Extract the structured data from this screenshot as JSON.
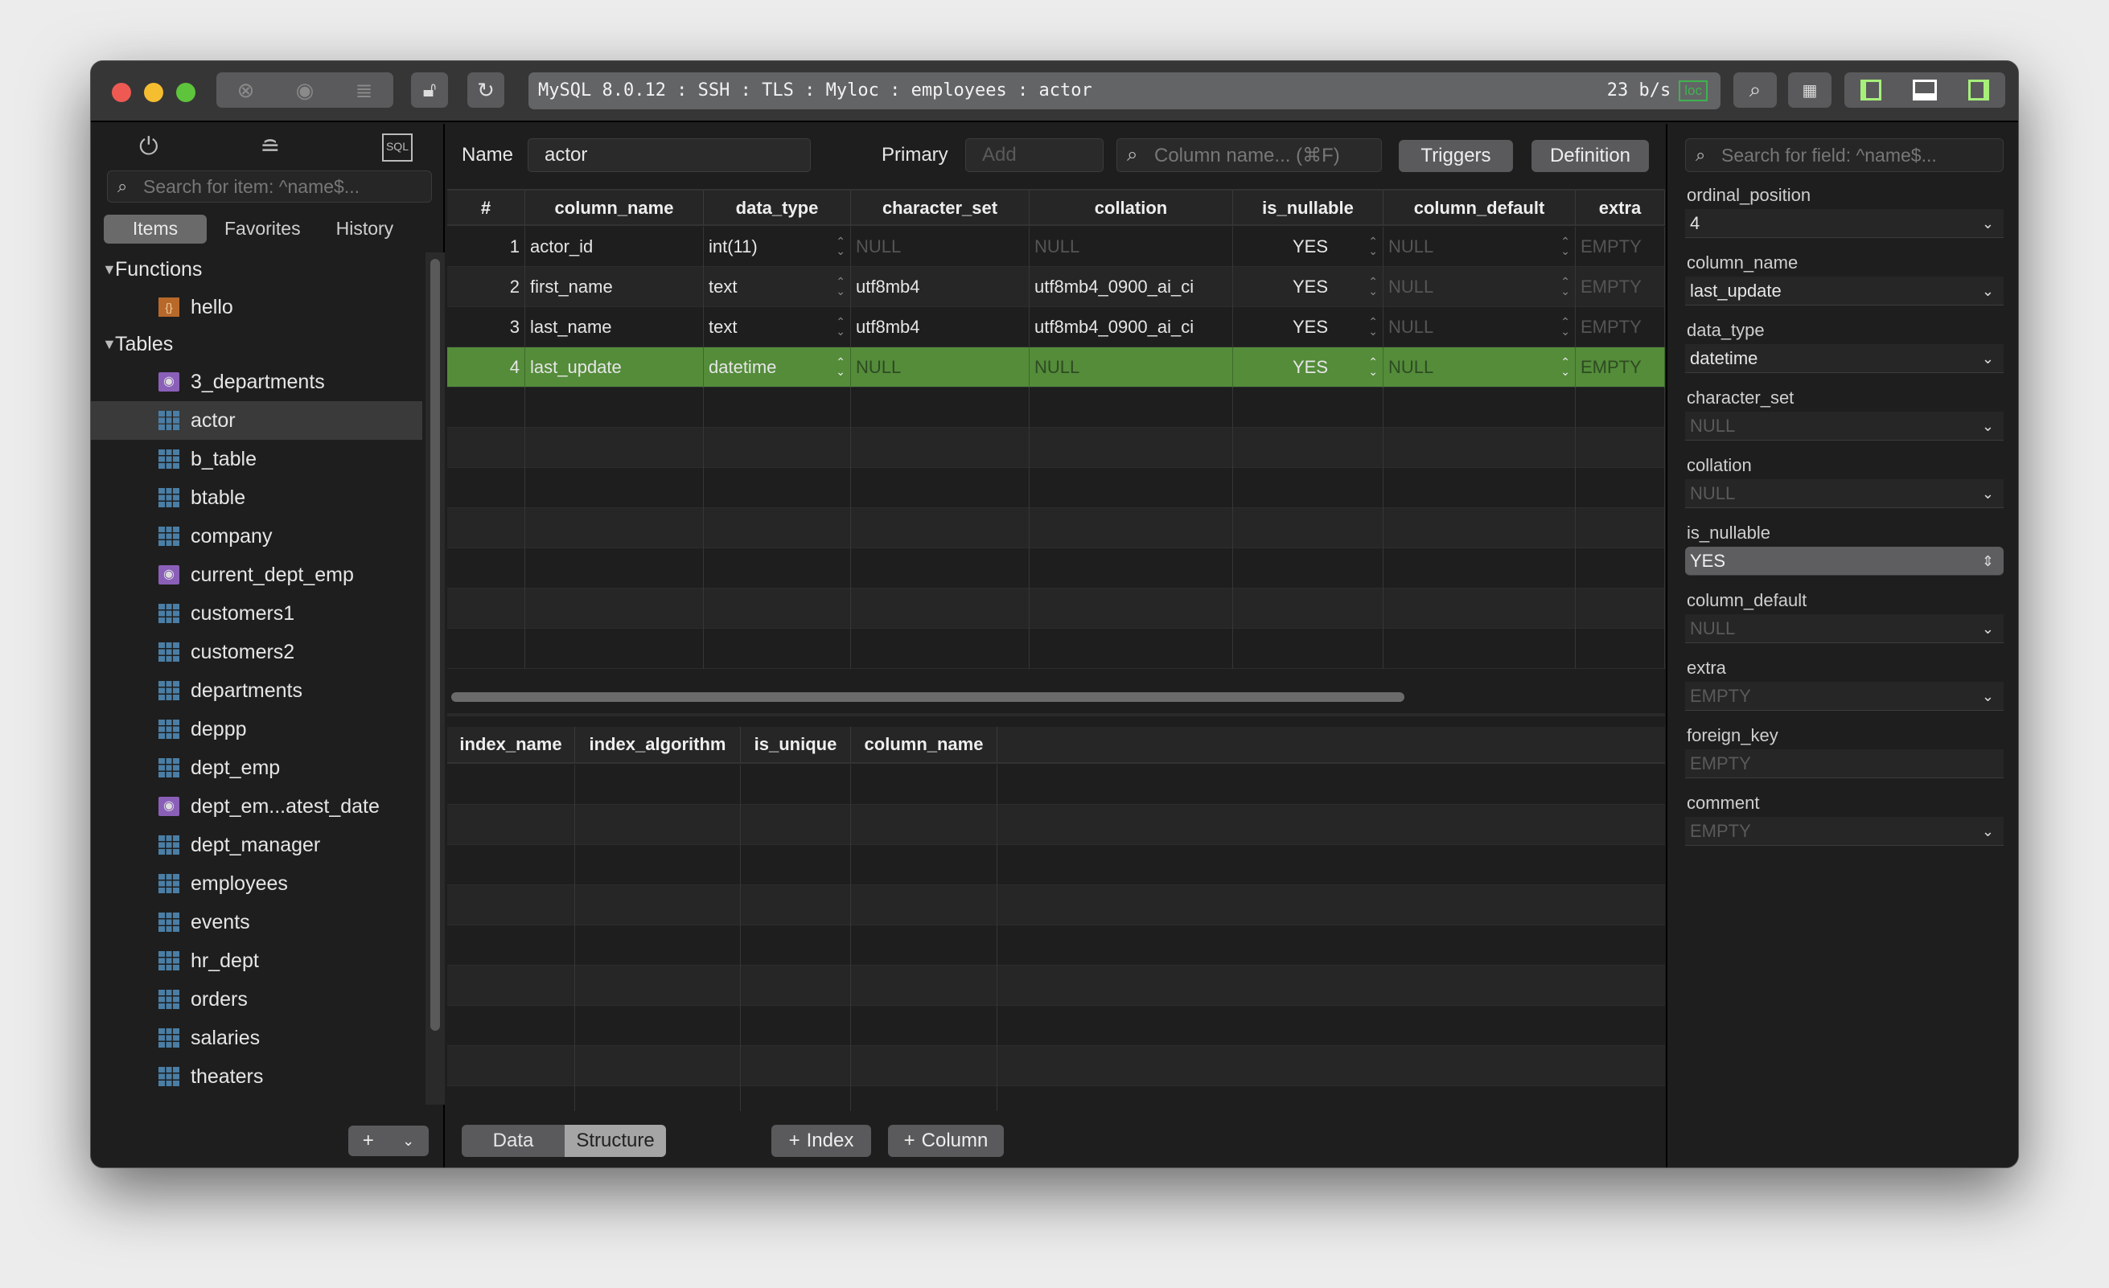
{
  "window": {
    "address": "MySQL 8.0.12 : SSH : TLS : Myloc : employees : actor",
    "rate": "23 b/s",
    "loc_badge": "loc",
    "colors": {
      "close": "#ee5a52",
      "minimize": "#f5bd30",
      "zoom": "#5ec43c",
      "accent_green": "#548c3a"
    }
  },
  "sidebar": {
    "search_placeholder": "Search for item: ^name$...",
    "tabs": [
      "Items",
      "Favorites",
      "History"
    ],
    "active_tab": "Items",
    "groups": {
      "functions": "Functions",
      "tables": "Tables"
    },
    "functions": [
      {
        "name": "hello",
        "icon": "function-icon"
      }
    ],
    "tables": [
      {
        "name": "3_departments",
        "icon": "view-icon"
      },
      {
        "name": "actor",
        "icon": "table-icon",
        "selected": true
      },
      {
        "name": "b_table",
        "icon": "table-icon"
      },
      {
        "name": "btable",
        "icon": "table-icon"
      },
      {
        "name": "company",
        "icon": "table-icon"
      },
      {
        "name": "current_dept_emp",
        "icon": "view-icon"
      },
      {
        "name": "customers1",
        "icon": "table-icon"
      },
      {
        "name": "customers2",
        "icon": "table-icon"
      },
      {
        "name": "departments",
        "icon": "table-icon"
      },
      {
        "name": "deppp",
        "icon": "table-icon"
      },
      {
        "name": "dept_emp",
        "icon": "table-icon"
      },
      {
        "name": "dept_em...atest_date",
        "icon": "view-icon"
      },
      {
        "name": "dept_manager",
        "icon": "table-icon"
      },
      {
        "name": "employees",
        "icon": "table-icon"
      },
      {
        "name": "events",
        "icon": "table-icon"
      },
      {
        "name": "hr_dept",
        "icon": "table-icon"
      },
      {
        "name": "orders",
        "icon": "table-icon"
      },
      {
        "name": "salaries",
        "icon": "table-icon"
      },
      {
        "name": "theaters",
        "icon": "table-icon"
      }
    ]
  },
  "toolbar": {
    "name_label": "Name",
    "name_value": "actor",
    "primary_label": "Primary",
    "primary_placeholder": "Add",
    "column_search_placeholder": "Column name... (⌘F)",
    "triggers": "Triggers",
    "definition": "Definition"
  },
  "columns_table": {
    "headers": [
      "#",
      "column_name",
      "data_type",
      "character_set",
      "collation",
      "is_nullable",
      "column_default",
      "extra"
    ],
    "rows": [
      [
        "1",
        "actor_id",
        "int(11)",
        "NULL",
        "NULL",
        "YES",
        "NULL",
        "EMPTY"
      ],
      [
        "2",
        "first_name",
        "text",
        "utf8mb4",
        "utf8mb4_0900_ai_ci",
        "YES",
        "NULL",
        "EMPTY"
      ],
      [
        "3",
        "last_name",
        "text",
        "utf8mb4",
        "utf8mb4_0900_ai_ci",
        "YES",
        "NULL",
        "EMPTY"
      ],
      [
        "4",
        "last_update",
        "datetime",
        "NULL",
        "NULL",
        "YES",
        "NULL",
        "EMPTY"
      ]
    ],
    "selected_row": 3
  },
  "index_table": {
    "headers": [
      "index_name",
      "index_algorithm",
      "is_unique",
      "column_name"
    ]
  },
  "bottom": {
    "data": "Data",
    "structure": "Structure",
    "index": "Index",
    "column": "Column",
    "active": "Structure"
  },
  "detail": {
    "search_placeholder": "Search for field: ^name$...",
    "fields": [
      {
        "label": "ordinal_position",
        "value": "4",
        "kind": "select"
      },
      {
        "label": "column_name",
        "value": "last_update",
        "kind": "select"
      },
      {
        "label": "data_type",
        "value": "datetime",
        "kind": "select"
      },
      {
        "label": "character_set",
        "value": "NULL",
        "kind": "select-muted"
      },
      {
        "label": "collation",
        "value": "NULL",
        "kind": "select-muted"
      },
      {
        "label": "is_nullable",
        "value": "YES",
        "kind": "stepper"
      },
      {
        "label": "column_default",
        "value": "NULL",
        "kind": "select-muted"
      },
      {
        "label": "extra",
        "value": "EMPTY",
        "kind": "select-muted"
      },
      {
        "label": "foreign_key",
        "value": "EMPTY",
        "kind": "text-muted"
      },
      {
        "label": "comment",
        "value": "EMPTY",
        "kind": "select-muted"
      }
    ]
  }
}
